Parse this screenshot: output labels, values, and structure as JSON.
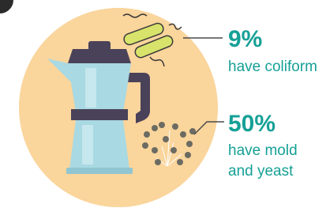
{
  "stats": [
    {
      "value": "9%",
      "label_lines": [
        "have coliform"
      ]
    },
    {
      "value": "50%",
      "label_lines": [
        "have mold",
        "and yeast"
      ]
    }
  ]
}
